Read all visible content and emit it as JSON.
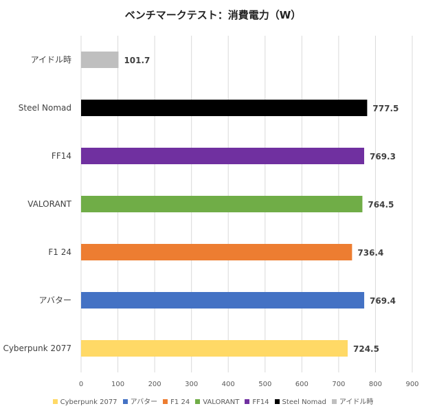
{
  "chart_data": {
    "type": "bar",
    "orientation": "horizontal",
    "title": "ベンチマークテスト：消費電力（W）",
    "categories": [
      "Cyberpunk 2077",
      "アバター",
      "F1 24",
      "VALORANT",
      "FF14",
      "Steel Nomad",
      "アイドル時"
    ],
    "values": [
      724.5,
      769.4,
      736.4,
      764.5,
      769.3,
      777.5,
      101.7
    ],
    "value_labels": [
      "724.5",
      "769.4",
      "736.4",
      "764.5",
      "769.3",
      "777.5",
      "101.7"
    ],
    "colors": [
      "#FFD966",
      "#4472C4",
      "#ED7D31",
      "#70AD47",
      "#7030A0",
      "#000000",
      "#BFBFBF"
    ],
    "xlim": [
      0,
      900
    ],
    "xticks": [
      "0",
      "100",
      "200",
      "300",
      "400",
      "500",
      "600",
      "700",
      "800",
      "900"
    ],
    "grid": true,
    "legend_position": "bottom"
  }
}
